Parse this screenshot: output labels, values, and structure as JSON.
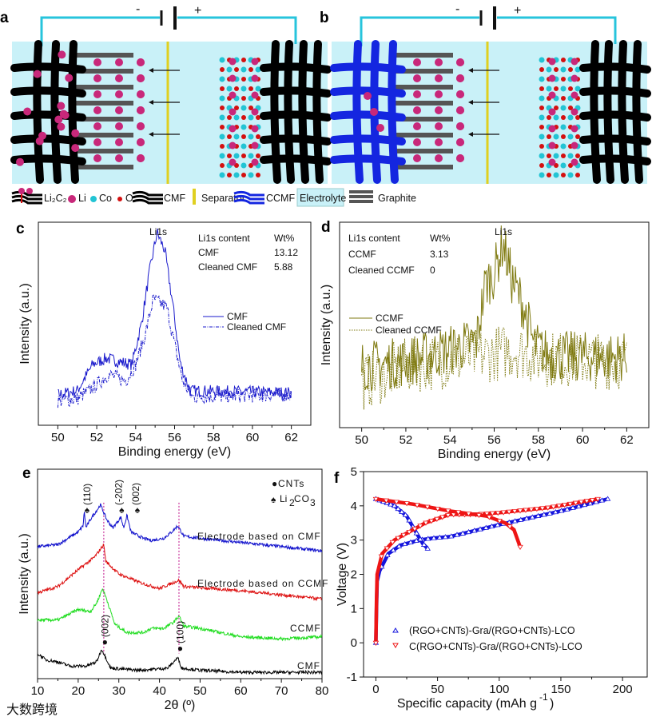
{
  "schematic": {
    "panel_a": {
      "label": "a",
      "minus": "-",
      "plus": "+"
    },
    "panel_b": {
      "label": "b",
      "minus": "-",
      "plus": "+"
    },
    "legend": [
      "Li₂C₂",
      "Li",
      "Co",
      "O",
      "CMF",
      "Separator",
      "CCMF",
      "Electrolyte",
      "Graphite"
    ],
    "colors": {
      "electrolyte": "#c9f1f8",
      "wire": "#27c4dc",
      "separator": "#e0d020",
      "li": "#c8287a",
      "co": "#22c4d4",
      "o": "#d41010",
      "cmf": "#000000",
      "ccmf": "#1426e0",
      "graphite": "#555555"
    }
  },
  "watermark": "大数跨境",
  "chart_data": [
    {
      "panel": "c",
      "type": "line",
      "xlabel": "Binding energy (eV)",
      "ylabel": "Intensity (a.u.)",
      "xlim": [
        49,
        63
      ],
      "ylim": [
        0,
        1
      ],
      "xticks": [
        50,
        52,
        54,
        56,
        58,
        60,
        62
      ],
      "peak_label": "Li1s",
      "table": {
        "header": [
          "Li1s content",
          "Wt%"
        ],
        "rows": [
          [
            "CMF",
            "13.12"
          ],
          [
            "Cleaned CMF",
            "5.88"
          ]
        ]
      },
      "legend_position": "center-right",
      "series": [
        {
          "name": "CMF",
          "color": "#1a1acc",
          "style": "solid",
          "points": [
            [
              50,
              0.15
            ],
            [
              51,
              0.17
            ],
            [
              51.8,
              0.3
            ],
            [
              52.5,
              0.33
            ],
            [
              53.3,
              0.31
            ],
            [
              53.8,
              0.3
            ],
            [
              54.3,
              0.5
            ],
            [
              54.7,
              0.75
            ],
            [
              55.1,
              0.95
            ],
            [
              55.5,
              0.86
            ],
            [
              55.9,
              0.6
            ],
            [
              56.3,
              0.3
            ],
            [
              56.8,
              0.17
            ],
            [
              62,
              0.16
            ]
          ]
        },
        {
          "name": "Cleaned CMF",
          "color": "#1a1acc",
          "style": "dashdot",
          "points": [
            [
              50,
              0.12
            ],
            [
              51,
              0.13
            ],
            [
              52,
              0.2
            ],
            [
              52.6,
              0.25
            ],
            [
              53.5,
              0.22
            ],
            [
              54,
              0.3
            ],
            [
              54.5,
              0.45
            ],
            [
              54.9,
              0.62
            ],
            [
              55.3,
              0.6
            ],
            [
              55.6,
              0.58
            ],
            [
              56,
              0.4
            ],
            [
              56.4,
              0.22
            ],
            [
              56.9,
              0.14
            ],
            [
              62,
              0.15
            ]
          ]
        }
      ]
    },
    {
      "panel": "d",
      "type": "line",
      "xlabel": "Binding energy (eV)",
      "ylabel": "Intensity (a.u.)",
      "xlim": [
        49,
        63
      ],
      "ylim": [
        0,
        1
      ],
      "xticks": [
        50,
        52,
        54,
        56,
        58,
        60,
        62
      ],
      "peak_label": "Li1s",
      "table": {
        "header": [
          "Li1s content",
          "Wt%"
        ],
        "rows": [
          [
            "CCMF",
            "3.13"
          ],
          [
            "Cleaned CCMF",
            "0"
          ]
        ]
      },
      "legend_position": "center-left",
      "series": [
        {
          "name": "CCMF",
          "color": "#7f7a10",
          "style": "solid",
          "points": [
            [
              50,
              0.3
            ],
            [
              52,
              0.32
            ],
            [
              54,
              0.38
            ],
            [
              55.2,
              0.42
            ],
            [
              55.6,
              0.7
            ],
            [
              56,
              0.75
            ],
            [
              56.4,
              0.9
            ],
            [
              56.8,
              0.72
            ],
            [
              57.3,
              0.6
            ],
            [
              57.8,
              0.4
            ],
            [
              58.5,
              0.35
            ],
            [
              62,
              0.34
            ]
          ]
        },
        {
          "name": "Cleaned CCMF",
          "color": "#7f7a10",
          "style": "dotted",
          "points": [
            [
              50,
              0.22
            ],
            [
              52,
              0.3
            ],
            [
              54,
              0.33
            ],
            [
              56,
              0.36
            ],
            [
              57,
              0.38
            ],
            [
              58,
              0.34
            ],
            [
              62,
              0.32
            ]
          ]
        }
      ]
    },
    {
      "panel": "e",
      "type": "line",
      "xlabel": "2θ (º)",
      "ylabel": "Intensity (a.u.)",
      "xlim": [
        10,
        80
      ],
      "ylim": [
        0,
        1
      ],
      "xticks": [
        10,
        20,
        30,
        40,
        50,
        60,
        70,
        80
      ],
      "legend": [
        {
          "symbol": "●",
          "label": "CNTs"
        },
        {
          "symbol": "♠",
          "label": "Li",
          "sub": "2",
          "label2": "CO",
          "sub2": "3"
        }
      ],
      "reference_lines": [
        26.3,
        44.8
      ],
      "annotations": [
        {
          "text": "(110)",
          "x": 21.4,
          "marker": "♠"
        },
        {
          "text": "(-202)",
          "x": 30.5,
          "marker": "♠"
        },
        {
          "text": "(002)",
          "x": 32.0,
          "marker": "♠"
        },
        {
          "text": "(002)",
          "x": 25.8,
          "marker": "●"
        },
        {
          "text": "(100)",
          "x": 44.3,
          "marker": "●"
        }
      ],
      "series": [
        {
          "name": "Electrode based on CMF",
          "color": "#1010cc",
          "points": [
            [
              10,
              0.63
            ],
            [
              15,
              0.64
            ],
            [
              20,
              0.7
            ],
            [
              21.2,
              0.73
            ],
            [
              21.5,
              0.8
            ],
            [
              21.9,
              0.72
            ],
            [
              23,
              0.76
            ],
            [
              25.5,
              0.83
            ],
            [
              27,
              0.76
            ],
            [
              28.5,
              0.72
            ],
            [
              30.5,
              0.77
            ],
            [
              31.2,
              0.72
            ],
            [
              32,
              0.78
            ],
            [
              33,
              0.7
            ],
            [
              36,
              0.67
            ],
            [
              38,
              0.66
            ],
            [
              41,
              0.67
            ],
            [
              43,
              0.7
            ],
            [
              44.5,
              0.73
            ],
            [
              46,
              0.68
            ],
            [
              50,
              0.67
            ],
            [
              60,
              0.65
            ],
            [
              80,
              0.61
            ]
          ]
        },
        {
          "name": "Electrode based on CCMF",
          "color": "#dd1010",
          "points": [
            [
              10,
              0.41
            ],
            [
              15,
              0.44
            ],
            [
              20,
              0.52
            ],
            [
              24,
              0.58
            ],
            [
              26.3,
              0.64
            ],
            [
              26.8,
              0.56
            ],
            [
              30,
              0.5
            ],
            [
              35,
              0.46
            ],
            [
              40,
              0.43
            ],
            [
              44.8,
              0.47
            ],
            [
              46,
              0.44
            ],
            [
              60,
              0.42
            ],
            [
              80,
              0.38
            ]
          ]
        },
        {
          "name": "CCMF",
          "color": "#22dd22",
          "points": [
            [
              10,
              0.28
            ],
            [
              15,
              0.28
            ],
            [
              20,
              0.33
            ],
            [
              23,
              0.32
            ],
            [
              24.5,
              0.36
            ],
            [
              26,
              0.43
            ],
            [
              27,
              0.38
            ],
            [
              29,
              0.26
            ],
            [
              32,
              0.22
            ],
            [
              36,
              0.22
            ],
            [
              38,
              0.24
            ],
            [
              41,
              0.24
            ],
            [
              43.5,
              0.27
            ],
            [
              44.8,
              0.3
            ],
            [
              46,
              0.25
            ],
            [
              50,
              0.24
            ],
            [
              60,
              0.2
            ],
            [
              70,
              0.19
            ],
            [
              80,
              0.2
            ]
          ]
        },
        {
          "name": "CMF",
          "color": "#000000",
          "points": [
            [
              10,
              0.12
            ],
            [
              12,
              0.09
            ],
            [
              15,
              0.08
            ],
            [
              18,
              0.06
            ],
            [
              22,
              0.06
            ],
            [
              24.5,
              0.08
            ],
            [
              25.8,
              0.14
            ],
            [
              26.8,
              0.1
            ],
            [
              28,
              0.05
            ],
            [
              35,
              0.04
            ],
            [
              42,
              0.05
            ],
            [
              44.5,
              0.1
            ],
            [
              45.5,
              0.05
            ],
            [
              50,
              0.04
            ],
            [
              60,
              0.03
            ],
            [
              80,
              0.03
            ]
          ]
        }
      ]
    },
    {
      "panel": "f",
      "type": "scatter",
      "xlabel": "Specific capacity (mAh g",
      "xlabel_sup": "-1",
      "xlabel_end": ")",
      "ylabel": "Voltage (V)",
      "xlim": [
        -10,
        220
      ],
      "ylim": [
        -1,
        5
      ],
      "xticks": [
        0,
        50,
        100,
        150,
        200
      ],
      "yticks": [
        -1,
        0,
        1,
        2,
        3,
        4,
        5
      ],
      "legend_position": "bottom",
      "series": [
        {
          "name": "(RGO+CNTs)-Gra/(RGO+CNTs)-LCO",
          "color": "#1515dd",
          "marker": "triangle-up",
          "charge": [
            [
              0,
              0
            ],
            [
              0.5,
              1
            ],
            [
              1,
              1.8
            ],
            [
              3,
              2.1
            ],
            [
              10,
              2.6
            ],
            [
              20,
              2.85
            ],
            [
              35,
              3.0
            ],
            [
              45,
              3.05
            ],
            [
              60,
              3.1
            ],
            [
              100,
              3.45
            ],
            [
              150,
              3.85
            ],
            [
              188,
              4.2
            ]
          ],
          "discharge": [
            [
              0,
              4.2
            ],
            [
              15,
              4.0
            ],
            [
              25,
              3.7
            ],
            [
              33,
              3.2
            ],
            [
              38,
              2.9
            ],
            [
              42,
              2.75
            ]
          ]
        },
        {
          "name": "C(RGO+CNTs)-Gra/(RGO+CNTs)-LCO",
          "color": "#ee1515",
          "marker": "triangle-down",
          "charge": [
            [
              0,
              0
            ],
            [
              0.5,
              1.2
            ],
            [
              1,
              2
            ],
            [
              5,
              2.6
            ],
            [
              15,
              3.0
            ],
            [
              25,
              3.2
            ],
            [
              40,
              3.5
            ],
            [
              60,
              3.75
            ],
            [
              80,
              3.75
            ],
            [
              100,
              3.8
            ],
            [
              140,
              3.95
            ],
            [
              180,
              4.2
            ]
          ],
          "discharge": [
            [
              0,
              4.2
            ],
            [
              30,
              4.05
            ],
            [
              60,
              3.85
            ],
            [
              90,
              3.7
            ],
            [
              105,
              3.5
            ],
            [
              112,
              3.3
            ],
            [
              117,
              2.8
            ]
          ]
        }
      ]
    }
  ]
}
